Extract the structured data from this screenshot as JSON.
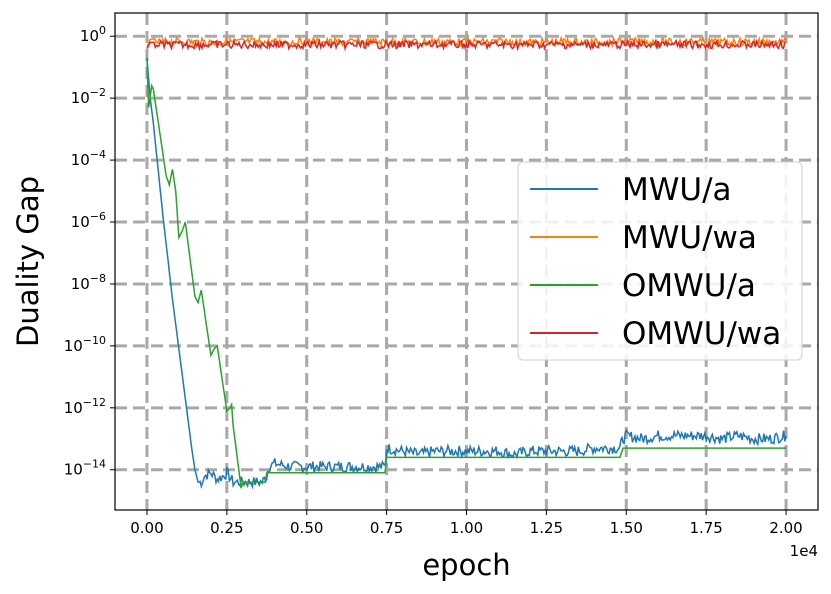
{
  "chart_data": {
    "type": "line",
    "xlabel": "epoch",
    "ylabel": "Duality Gap",
    "x_offset_label": "1e4",
    "x_range": [
      -0.1,
      2.1
    ],
    "y_scale": "log",
    "y_range_exponent": [
      -15.3,
      0.75
    ],
    "x_ticks": [
      {
        "value": 0.0,
        "label": "0.00"
      },
      {
        "value": 0.25,
        "label": "0.25"
      },
      {
        "value": 0.5,
        "label": "0.50"
      },
      {
        "value": 0.75,
        "label": "0.75"
      },
      {
        "value": 1.0,
        "label": "1.00"
      },
      {
        "value": 1.25,
        "label": "1.25"
      },
      {
        "value": 1.5,
        "label": "1.50"
      },
      {
        "value": 1.75,
        "label": "1.75"
      },
      {
        "value": 2.0,
        "label": "2.00"
      }
    ],
    "y_ticks": [
      {
        "exp": 0,
        "base": "10",
        "sup": "0"
      },
      {
        "exp": -2,
        "base": "10",
        "sup": "−2"
      },
      {
        "exp": -4,
        "base": "10",
        "sup": "−4"
      },
      {
        "exp": -6,
        "base": "10",
        "sup": "−6"
      },
      {
        "exp": -8,
        "base": "10",
        "sup": "−8"
      },
      {
        "exp": -10,
        "base": "10",
        "sup": "−10"
      },
      {
        "exp": -12,
        "base": "10",
        "sup": "−12"
      },
      {
        "exp": -14,
        "base": "10",
        "sup": "−14"
      }
    ],
    "grid": true,
    "legend_position": "center-right",
    "series": [
      {
        "name": "MWU/a",
        "color": "#1f77b4",
        "log10_points": [
          [
            0.0,
            -0.7
          ],
          [
            0.01,
            -2.0
          ],
          [
            0.02,
            -2.8
          ],
          [
            0.03,
            -3.8
          ],
          [
            0.04,
            -4.8
          ],
          [
            0.05,
            -5.8
          ],
          [
            0.06,
            -6.7
          ],
          [
            0.07,
            -7.6
          ],
          [
            0.08,
            -8.5
          ],
          [
            0.09,
            -9.3
          ],
          [
            0.1,
            -10.1
          ],
          [
            0.11,
            -10.9
          ],
          [
            0.12,
            -11.7
          ],
          [
            0.13,
            -12.5
          ],
          [
            0.14,
            -13.3
          ],
          [
            0.15,
            -14.0
          ],
          [
            0.16,
            -14.4
          ],
          [
            0.17,
            -14.4
          ],
          [
            0.18,
            -14.2
          ],
          [
            0.2,
            -14.1
          ],
          [
            0.22,
            -14.3
          ],
          [
            0.24,
            -14.2
          ],
          [
            0.25,
            -14.1
          ],
          [
            0.27,
            -14.4
          ],
          [
            0.3,
            -14.4
          ],
          [
            0.33,
            -14.4
          ],
          [
            0.36,
            -14.4
          ],
          [
            0.375,
            -14.2
          ],
          [
            0.38,
            -13.9
          ],
          [
            0.4,
            -13.8
          ],
          [
            0.45,
            -13.9
          ],
          [
            0.5,
            -13.9
          ],
          [
            0.55,
            -13.9
          ],
          [
            0.6,
            -13.9
          ],
          [
            0.65,
            -13.9
          ],
          [
            0.7,
            -13.9
          ],
          [
            0.745,
            -13.9
          ],
          [
            0.75,
            -13.3
          ],
          [
            0.8,
            -13.4
          ],
          [
            0.85,
            -13.5
          ],
          [
            0.9,
            -13.4
          ],
          [
            0.95,
            -13.4
          ],
          [
            1.0,
            -13.4
          ],
          [
            1.05,
            -13.4
          ],
          [
            1.1,
            -13.4
          ],
          [
            1.15,
            -13.5
          ],
          [
            1.2,
            -13.4
          ],
          [
            1.25,
            -13.4
          ],
          [
            1.3,
            -13.4
          ],
          [
            1.35,
            -13.4
          ],
          [
            1.4,
            -13.3
          ],
          [
            1.45,
            -13.3
          ],
          [
            1.48,
            -13.3
          ],
          [
            1.49,
            -13.0
          ],
          [
            1.5,
            -12.9
          ],
          [
            1.55,
            -13.0
          ],
          [
            1.6,
            -12.9
          ],
          [
            1.65,
            -12.9
          ],
          [
            1.7,
            -12.9
          ],
          [
            1.75,
            -12.9
          ],
          [
            1.8,
            -13.0
          ],
          [
            1.85,
            -12.9
          ],
          [
            1.9,
            -13.0
          ],
          [
            1.95,
            -13.0
          ],
          [
            2.0,
            -12.9
          ]
        ]
      },
      {
        "name": "MWU/wa",
        "color": "#ff7f0e",
        "log10_points": [
          [
            0.0,
            -0.35
          ],
          [
            0.01,
            -0.1
          ],
          [
            0.05,
            -0.12
          ],
          [
            0.1,
            -0.1
          ],
          [
            0.2,
            -0.12
          ],
          [
            0.3,
            -0.1
          ],
          [
            0.4,
            -0.12
          ],
          [
            0.5,
            -0.1
          ],
          [
            0.6,
            -0.12
          ],
          [
            0.7,
            -0.1
          ],
          [
            0.8,
            -0.12
          ],
          [
            0.9,
            -0.1
          ],
          [
            1.0,
            -0.12
          ],
          [
            1.1,
            -0.1
          ],
          [
            1.2,
            -0.12
          ],
          [
            1.3,
            -0.1
          ],
          [
            1.4,
            -0.12
          ],
          [
            1.5,
            -0.1
          ],
          [
            1.6,
            -0.12
          ],
          [
            1.7,
            -0.1
          ],
          [
            1.8,
            -0.12
          ],
          [
            1.9,
            -0.1
          ],
          [
            2.0,
            -0.12
          ]
        ]
      },
      {
        "name": "OMWU/a",
        "color": "#2ca02c",
        "log10_points": [
          [
            0.0,
            -0.7
          ],
          [
            0.005,
            -2.3
          ],
          [
            0.015,
            -1.6
          ],
          [
            0.02,
            -1.7
          ],
          [
            0.03,
            -2.4
          ],
          [
            0.04,
            -3.1
          ],
          [
            0.05,
            -3.8
          ],
          [
            0.06,
            -4.5
          ],
          [
            0.07,
            -4.8
          ],
          [
            0.08,
            -4.3
          ],
          [
            0.09,
            -5.0
          ],
          [
            0.1,
            -6.5
          ],
          [
            0.11,
            -6.3
          ],
          [
            0.12,
            -6.0
          ],
          [
            0.13,
            -6.8
          ],
          [
            0.14,
            -7.6
          ],
          [
            0.15,
            -8.4
          ],
          [
            0.16,
            -8.6
          ],
          [
            0.17,
            -8.2
          ],
          [
            0.18,
            -8.9
          ],
          [
            0.19,
            -9.6
          ],
          [
            0.2,
            -10.3
          ],
          [
            0.21,
            -10.1
          ],
          [
            0.22,
            -10.0
          ],
          [
            0.23,
            -10.7
          ],
          [
            0.24,
            -11.4
          ],
          [
            0.25,
            -12.1
          ],
          [
            0.26,
            -12.0
          ],
          [
            0.265,
            -11.9
          ],
          [
            0.27,
            -12.6
          ],
          [
            0.28,
            -13.4
          ],
          [
            0.29,
            -14.2
          ],
          [
            0.295,
            -14.6
          ],
          [
            0.3,
            -14.4
          ],
          [
            0.31,
            -14.4
          ],
          [
            0.34,
            -14.4
          ],
          [
            0.37,
            -14.4
          ],
          [
            0.375,
            -14.1
          ],
          [
            0.4,
            -14.1
          ],
          [
            0.45,
            -14.1
          ],
          [
            0.5,
            -14.1
          ],
          [
            0.55,
            -14.1
          ],
          [
            0.6,
            -14.1
          ],
          [
            0.65,
            -14.1
          ],
          [
            0.7,
            -14.1
          ],
          [
            0.745,
            -14.1
          ],
          [
            0.75,
            -13.6
          ],
          [
            0.8,
            -13.6
          ],
          [
            0.9,
            -13.6
          ],
          [
            1.0,
            -13.6
          ],
          [
            1.1,
            -13.6
          ],
          [
            1.2,
            -13.6
          ],
          [
            1.3,
            -13.6
          ],
          [
            1.4,
            -13.6
          ],
          [
            1.48,
            -13.6
          ],
          [
            1.49,
            -13.3
          ],
          [
            1.55,
            -13.3
          ],
          [
            1.6,
            -13.3
          ],
          [
            1.7,
            -13.3
          ],
          [
            1.8,
            -13.3
          ],
          [
            1.9,
            -13.3
          ],
          [
            2.0,
            -13.3
          ]
        ]
      },
      {
        "name": "OMWU/wa",
        "color": "#d62728",
        "log10_points": [
          [
            0.0,
            -0.4
          ],
          [
            0.01,
            -0.2
          ],
          [
            0.05,
            -0.2
          ],
          [
            0.1,
            -0.2
          ],
          [
            0.2,
            -0.2
          ],
          [
            0.3,
            -0.2
          ],
          [
            0.4,
            -0.2
          ],
          [
            0.5,
            -0.2
          ],
          [
            0.6,
            -0.2
          ],
          [
            0.7,
            -0.2
          ],
          [
            0.8,
            -0.2
          ],
          [
            0.9,
            -0.2
          ],
          [
            1.0,
            -0.2
          ],
          [
            1.1,
            -0.2
          ],
          [
            1.2,
            -0.2
          ],
          [
            1.3,
            -0.2
          ],
          [
            1.4,
            -0.2
          ],
          [
            1.5,
            -0.2
          ],
          [
            1.6,
            -0.2
          ],
          [
            1.7,
            -0.2
          ],
          [
            1.8,
            -0.2
          ],
          [
            1.9,
            -0.2
          ],
          [
            2.0,
            -0.2
          ]
        ]
      }
    ]
  }
}
